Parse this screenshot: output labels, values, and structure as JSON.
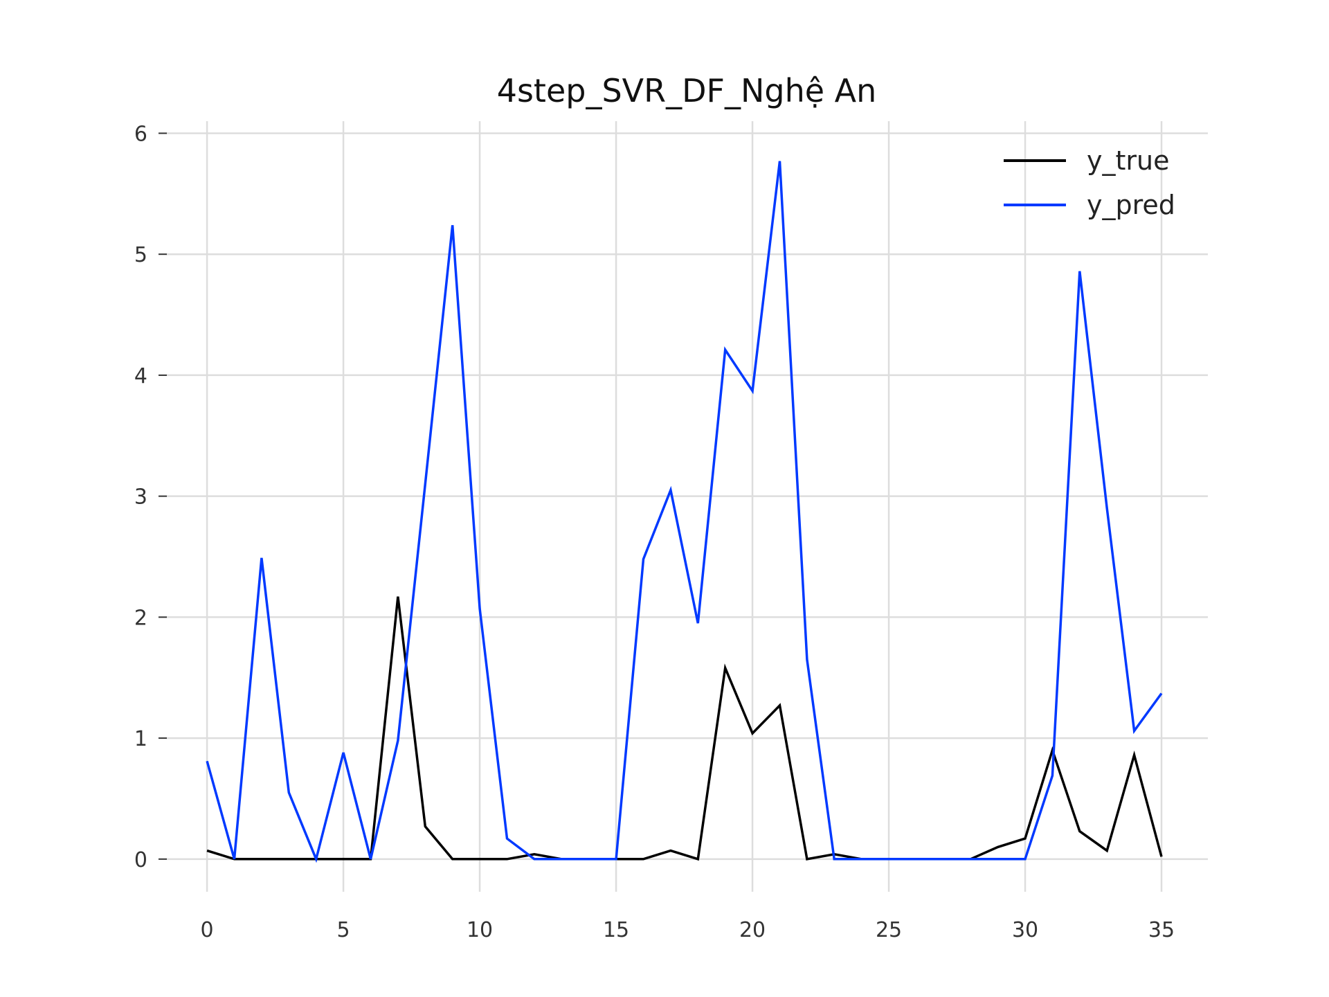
{
  "chart_data": {
    "type": "line",
    "title": "4step_SVR_DF_Nghệ An",
    "xlabel": "",
    "ylabel": "",
    "xlim": [
      -1.5,
      36.7
    ],
    "ylim": [
      -0.27,
      6.1
    ],
    "x_ticks": [
      0,
      5,
      10,
      15,
      20,
      25,
      30,
      35
    ],
    "y_ticks": [
      0,
      1,
      2,
      3,
      4,
      5,
      6
    ],
    "grid": true,
    "legend_position": "top-right",
    "x": [
      0,
      1,
      2,
      3,
      4,
      5,
      6,
      7,
      8,
      9,
      10,
      11,
      12,
      13,
      14,
      15,
      16,
      17,
      18,
      19,
      20,
      21,
      22,
      23,
      24,
      25,
      26,
      27,
      28,
      29,
      30,
      31,
      32,
      33,
      34,
      35
    ],
    "series": [
      {
        "name": "y_true",
        "color": "#000000",
        "values": [
          0.07,
          0.0,
          0.0,
          0.0,
          0.0,
          0.0,
          0.0,
          2.17,
          0.27,
          0.0,
          0.0,
          0.0,
          0.04,
          0.0,
          0.0,
          0.0,
          0.0,
          0.07,
          0.0,
          1.58,
          1.04,
          1.27,
          0.0,
          0.04,
          0.0,
          0.0,
          0.0,
          0.0,
          0.0,
          0.1,
          0.17,
          0.9,
          0.23,
          0.07,
          0.86,
          0.02
        ]
      },
      {
        "name": "y_pred",
        "color": "#0039ff",
        "values": [
          0.81,
          0.0,
          2.49,
          0.55,
          0.0,
          0.88,
          0.0,
          0.98,
          3.1,
          5.24,
          2.07,
          0.17,
          0.0,
          0.0,
          0.0,
          0.0,
          2.48,
          3.05,
          1.95,
          4.21,
          3.87,
          5.77,
          1.65,
          0.0,
          0.0,
          0.0,
          0.0,
          0.0,
          0.0,
          0.0,
          0.0,
          0.69,
          4.86,
          2.9,
          1.06,
          1.37
        ]
      }
    ]
  }
}
